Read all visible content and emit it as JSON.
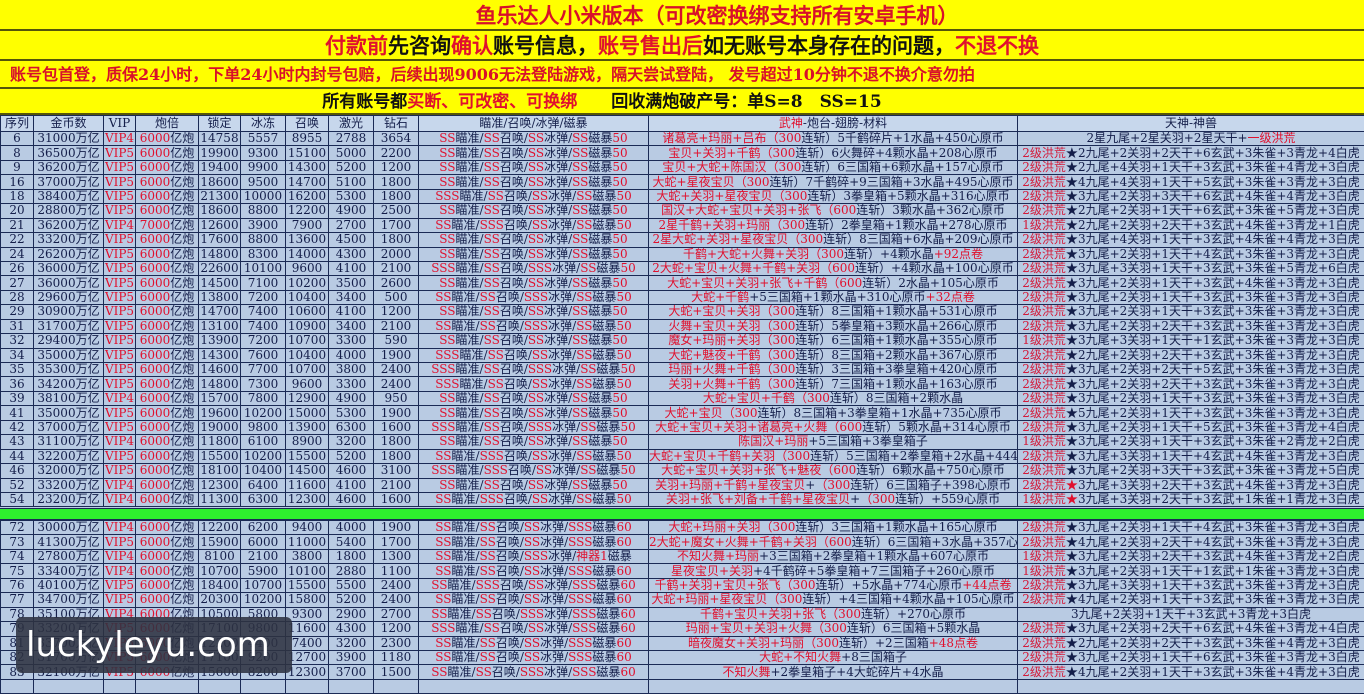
{
  "banners": {
    "title": "鱼乐达人小米版本（可改密换绑支持所有安卓手机）",
    "notice": [
      [
        "付款前",
        "r"
      ],
      [
        "先咨询",
        "b"
      ],
      [
        "确认",
        "r"
      ],
      [
        "账号信息，",
        "b"
      ],
      [
        "账号售出后",
        "r"
      ],
      [
        "如无账号本身存在的问题，",
        "b"
      ],
      [
        "不退不换",
        "r"
      ]
    ],
    "warranty": "账号包首登，质保24小时，下单24小时内封号包赔，后续出现9006无法登陆游戏，隔天尝试登陆， 发号超过10分钟不退不换介意勿拍",
    "guarantee": [
      [
        "所有账号都",
        "b"
      ],
      [
        "买断、可改密、可换绑",
        "r"
      ],
      [
        "　　回收满炮破产号：单S=8　SS=15",
        "b"
      ]
    ]
  },
  "columns": [
    "序列",
    "金币数",
    "VIP",
    "炮倍",
    "锁定",
    "冰冻",
    "召唤",
    "激光",
    "钻石",
    "瞄准/召唤/冰弹/磁暴",
    "武神-炮台-翅膀-材料",
    "天神-神兽"
  ],
  "column_wushen_red": "武神",
  "cannon_unit": "亿炮",
  "skill_names": [
    "瞄准",
    "召唤",
    "冰弹",
    "磁暴"
  ],
  "colors": {
    "banner": "#ffff00",
    "table": "#b9cbe3",
    "separator": "#2ef02e",
    "accent_red": "#e0102e"
  },
  "watermark": "luckyleyu.com",
  "section1": [
    {
      "id": "6",
      "gold": "31000万亿",
      "vip": "VIP4",
      "cannon": "6000",
      "lock": "14758",
      "freeze": "5557",
      "summon": "8955",
      "laser": "2788",
      "diamond": "3654",
      "grades": [
        "SS",
        "SS",
        "SS",
        "SS"
      ],
      "lv": "50",
      "wr": "诸葛亮+玛丽+吕布",
      "wt": "（300连斩）5千鹤碎片+1水晶+450心原币",
      "tl": "",
      "ts": "",
      "tb": "2星九尾+2星关羽+2星天干+",
      "tx": "一级洪荒"
    },
    {
      "id": "8",
      "gold": "36500万亿",
      "vip": "VIP5",
      "cannon": "6000",
      "lock": "19900",
      "freeze": "9300",
      "summon": "15100",
      "laser": "5000",
      "diamond": "2200",
      "grades": [
        "SS",
        "SS",
        "SS",
        "SS"
      ],
      "lv": "50",
      "wr": "宝贝+关羽+千鹤",
      "wt": "（300连斩）6火舞碎+4颗水晶+208心原币",
      "tl": "2级洪荒",
      "ts": "black",
      "tb": "2九尾+2关羽+2天干+6玄武+3朱雀+3青龙+4白虎"
    },
    {
      "id": "9",
      "gold": "36200万亿",
      "vip": "VIP5",
      "cannon": "6000",
      "lock": "19400",
      "freeze": "9900",
      "summon": "14300",
      "laser": "5200",
      "diamond": "1200",
      "grades": [
        "SS",
        "SS",
        "SS",
        "SS"
      ],
      "lv": "50",
      "wr": "宝贝+大蛇+陈国汉",
      "wt": "（300连斩）6三国箱+6颗水晶+157心原币",
      "tl": "2级洪荒",
      "ts": "black",
      "tb": "2九尾+4关羽+1天干+3玄武+3朱雀+4青龙+3白虎"
    },
    {
      "id": "16",
      "gold": "37000万亿",
      "vip": "VIP5",
      "cannon": "6000",
      "lock": "18600",
      "freeze": "9500",
      "summon": "14700",
      "laser": "5100",
      "diamond": "1800",
      "grades": [
        "SS",
        "SS",
        "SS",
        "SS"
      ],
      "lv": "50",
      "wr": "大蛇+星夜宝贝",
      "wt": "（300连斩）7千鹤碎+9三国箱+3水晶+495心原币",
      "tl": "2级洪荒",
      "ts": "black",
      "tb": "4九尾+4关羽+1天干+5玄武+3朱雀+3青龙+3白虎"
    },
    {
      "id": "18",
      "gold": "38400万亿",
      "vip": "VIP5",
      "cannon": "6000",
      "lock": "21300",
      "freeze": "10000",
      "summon": "16200",
      "laser": "5300",
      "diamond": "1800",
      "grades": [
        "SSS",
        "SS",
        "SS",
        "SS"
      ],
      "lv": "50",
      "wr": "大蛇+关羽+星夜宝贝",
      "wt": "（300连斩）3拳皇箱+5颗水晶+316心原币",
      "tl": "2级洪荒",
      "ts": "black",
      "tb": "3九尾+2关羽+3天干+6玄武+4朱雀+4青龙+3白虎"
    },
    {
      "id": "20",
      "gold": "28800万亿",
      "vip": "VIP5",
      "cannon": "6000",
      "lock": "18600",
      "freeze": "8800",
      "summon": "12200",
      "laser": "4900",
      "diamond": "2500",
      "grades": [
        "SS",
        "SS",
        "SS",
        "SS"
      ],
      "lv": "50",
      "wr": "国汉+大蛇+宝贝+关羽+张飞",
      "wt": "（600连斩）3颗水晶+362心原币",
      "tl": "2级洪荒",
      "ts": "black",
      "tb": "2九尾+2关羽+1天干+6玄武+3朱雀+5青龙+3白虎"
    },
    {
      "id": "21",
      "gold": "36200万亿",
      "vip": "VIP4",
      "cannon": "7000",
      "lock": "12600",
      "freeze": "3900",
      "summon": "7900",
      "laser": "2700",
      "diamond": "1700",
      "grades": [
        "SS",
        "SSS",
        "SS",
        "SS"
      ],
      "lv": "50",
      "wr": "2星千鹤+关羽+玛丽",
      "wt": "（300连斩）2拳皇箱+1颗水晶+278心原币",
      "tl": "1级洪荒",
      "ts": "black",
      "tb": "2九尾+2关羽+2天干+3玄武+4朱雀+3青龙+1白虎"
    },
    {
      "id": "22",
      "gold": "33200万亿",
      "vip": "VIP5",
      "cannon": "6000",
      "lock": "17600",
      "freeze": "8800",
      "summon": "13600",
      "laser": "4500",
      "diamond": "1800",
      "grades": [
        "SS",
        "SS",
        "SS",
        "SS"
      ],
      "lv": "50",
      "wr": "2星大蛇+关羽+星夜宝贝",
      "wt": "（300连斩）8三国箱+6水晶+209心原币",
      "tl": "2级洪荒",
      "ts": "black",
      "tb": "3九尾+4关羽+1天干+3玄武+4朱雀+4青龙+3白虎"
    },
    {
      "id": "24",
      "gold": "26200万亿",
      "vip": "VIP5",
      "cannon": "6000",
      "lock": "14800",
      "freeze": "8300",
      "summon": "14000",
      "laser": "4300",
      "diamond": "2000",
      "grades": [
        "SS",
        "SS",
        "SS",
        "SS"
      ],
      "lv": "50",
      "wr": "千鹤+大蛇+火舞+关羽",
      "wt": "（300连斩）+4颗水晶+92点卷",
      "tl": "2级洪荒",
      "ts": "black",
      "tb": "3九尾+2关羽+1天干+4玄武+3朱雀+3青龙+3白虎"
    },
    {
      "id": "26",
      "gold": "36000万亿",
      "vip": "VIP5",
      "cannon": "6000",
      "lock": "22600",
      "freeze": "10100",
      "summon": "9600",
      "laser": "4100",
      "diamond": "2100",
      "grades": [
        "SSS",
        "SS",
        "SSS",
        "SS"
      ],
      "lv": "50",
      "wr": "2大蛇+宝贝+火舞+千鹤+关羽",
      "wt": "（600连斩）+4颗水晶+100心原币",
      "tl": "2级洪荒",
      "ts": "black",
      "tb": "3九尾+3关羽+1天干+3玄武+3朱雀+5青龙+6白虎"
    },
    {
      "id": "27",
      "gold": "36000万亿",
      "vip": "VIP5",
      "cannon": "6000",
      "lock": "14500",
      "freeze": "7100",
      "summon": "10200",
      "laser": "3500",
      "diamond": "2600",
      "grades": [
        "SS",
        "SS",
        "SS",
        "SS"
      ],
      "lv": "50",
      "wr": "大蛇+宝贝+关羽+张飞+千鹤",
      "wt": "（600连斩）2水晶+105心原币",
      "tl": "2级洪荒",
      "ts": "black",
      "tb": "3九尾+2关羽+1天干+3玄武+4朱雀+3青龙+3白虎"
    },
    {
      "id": "28",
      "gold": "29600万亿",
      "vip": "VIP5",
      "cannon": "6000",
      "lock": "13800",
      "freeze": "7200",
      "summon": "10400",
      "laser": "3400",
      "diamond": "500",
      "grades": [
        "SS",
        "SS",
        "SSS",
        "SS"
      ],
      "lv": "50",
      "wr": "大蛇+千鹤",
      "wt": "+5三国箱+1颗水晶+310心原币+32点卷",
      "tl": "2级洪荒",
      "ts": "black",
      "tb": "3九尾+2关羽+1天干+3玄武+3朱雀+3青龙+3白虎"
    },
    {
      "id": "29",
      "gold": "30900万亿",
      "vip": "VIP5",
      "cannon": "6000",
      "lock": "14700",
      "freeze": "7400",
      "summon": "10600",
      "laser": "4100",
      "diamond": "1200",
      "grades": [
        "SS",
        "SS",
        "SS",
        "SS"
      ],
      "lv": "50",
      "wr": "大蛇+宝贝+关羽",
      "wt": "（300连斩）8三国箱+1颗水晶+531心原币",
      "tl": "2级洪荒",
      "ts": "black",
      "tb": "3九尾+2关羽+1天干+3玄武+3朱雀+3青龙+3白虎"
    },
    {
      "id": "31",
      "gold": "31700万亿",
      "vip": "VIP5",
      "cannon": "6000",
      "lock": "13100",
      "freeze": "7400",
      "summon": "10900",
      "laser": "3400",
      "diamond": "2100",
      "grades": [
        "SS",
        "SS",
        "SSS",
        "SS"
      ],
      "lv": "50",
      "wr": "火舞+宝贝+关羽",
      "wt": "（300连斩）5拳皇箱+3颗水晶+266心原币",
      "tl": "2级洪荒",
      "ts": "black",
      "tb": "3九尾+2关羽+2天干+3玄武+3朱雀+3青龙+3白虎"
    },
    {
      "id": "32",
      "gold": "29400万亿",
      "vip": "VIP5",
      "cannon": "6000",
      "lock": "13900",
      "freeze": "7200",
      "summon": "10700",
      "laser": "3300",
      "diamond": "590",
      "grades": [
        "SS",
        "SS",
        "SS",
        "SS"
      ],
      "lv": "50",
      "wr": "魔女+玛丽+关羽",
      "wt": "（300连斩）6三国箱+1颗水晶+355心原币",
      "tl": "1级洪荒",
      "ts": "black",
      "tb": "3九尾+3关羽+1天干+1玄武+3朱雀+3青龙+3白虎"
    },
    {
      "id": "34",
      "gold": "35000万亿",
      "vip": "VIP5",
      "cannon": "6000",
      "lock": "14300",
      "freeze": "7600",
      "summon": "10400",
      "laser": "4000",
      "diamond": "1900",
      "grades": [
        "SSS",
        "SS",
        "SS",
        "SS"
      ],
      "lv": "50",
      "wr": "大蛇+魅夜+千鹤",
      "wt": "（300连斩）8三国箱+2颗水晶+367心原币",
      "tl": "2级洪荒",
      "ts": "black",
      "tb": "2九尾+2关羽+2天干+3玄武+3朱雀+3青龙+3白虎"
    },
    {
      "id": "35",
      "gold": "35300万亿",
      "vip": "VIP5",
      "cannon": "6000",
      "lock": "14600",
      "freeze": "7700",
      "summon": "10700",
      "laser": "3800",
      "diamond": "2400",
      "grades": [
        "SSS",
        "SS",
        "SSS",
        "SS"
      ],
      "lv": "50",
      "wr": "玛丽+火舞+千鹤",
      "wt": "（300连斩）3三国箱+3拳皇箱+420心原币",
      "tl": "2级洪荒",
      "ts": "black",
      "tb": "3九尾+2关羽+2天干+5玄武+3朱雀+3青龙+3白虎"
    },
    {
      "id": "36",
      "gold": "34200万亿",
      "vip": "VIP5",
      "cannon": "6000",
      "lock": "14800",
      "freeze": "7300",
      "summon": "9600",
      "laser": "3300",
      "diamond": "2400",
      "grades": [
        "SSS",
        "SS",
        "SS",
        "SS"
      ],
      "lv": "50",
      "wr": "关羽+火舞+千鹤",
      "wt": "（300连斩）7三国箱+1颗水晶+163心原币",
      "tl": "2级洪荒",
      "ts": "black",
      "tb": "3九尾+2关羽+2天干+3玄武+3朱雀+3青龙+3白虎"
    },
    {
      "id": "39",
      "gold": "38100万亿",
      "vip": "VIP4",
      "cannon": "6000",
      "lock": "15700",
      "freeze": "7800",
      "summon": "12900",
      "laser": "4900",
      "diamond": "950",
      "grades": [
        "SS",
        "SS",
        "SS",
        "SS"
      ],
      "lv": "50",
      "wr": "大蛇+宝贝+千鹤",
      "wt": "（300连斩）8三国箱+2颗水晶",
      "tl": "2级洪荒",
      "ts": "black",
      "tb": "3九尾+2关羽+1天干+3玄武+3朱雀+3青龙+3白虎"
    },
    {
      "id": "41",
      "gold": "35000万亿",
      "vip": "VIP5",
      "cannon": "6000",
      "lock": "19600",
      "freeze": "10200",
      "summon": "15000",
      "laser": "5300",
      "diamond": "1900",
      "grades": [
        "SS",
        "SS",
        "SS",
        "SS"
      ],
      "lv": "50",
      "wr": "大蛇+宝贝",
      "wt": "（300连斩）8三国箱+3拳皇箱+1水晶+735心原币",
      "tl": "2级洪荒",
      "ts": "black",
      "tb": "5九尾+2关羽+1天干+3玄武+3朱雀+3青龙+3白虎"
    },
    {
      "id": "42",
      "gold": "37000万亿",
      "vip": "VIP5",
      "cannon": "6000",
      "lock": "19000",
      "freeze": "9800",
      "summon": "13900",
      "laser": "6300",
      "diamond": "1600",
      "grades": [
        "SSS",
        "SS",
        "SSS",
        "SS"
      ],
      "lv": "50",
      "wr": "大蛇+宝贝+关羽+诸葛亮+火舞",
      "wt": "（600连斩）5颗水晶+314心原币",
      "tl": "2级洪荒",
      "ts": "black",
      "tb": "3九尾+2关羽+1天干+5玄武+3朱雀+3青龙+4白虎"
    },
    {
      "id": "43",
      "gold": "31100万亿",
      "vip": "VIP4",
      "cannon": "6000",
      "lock": "11800",
      "freeze": "6100",
      "summon": "8900",
      "laser": "3200",
      "diamond": "1800",
      "grades": [
        "SS",
        "SS",
        "SS",
        "SS"
      ],
      "lv": "50",
      "wr": "陈国汉+玛丽",
      "wt": "+5三国箱+3拳皇箱子",
      "tl": "1级洪荒",
      "ts": "black",
      "tb": "3九尾+2关羽+1天干+3玄武+3朱雀+2青龙+2白虎"
    },
    {
      "id": "44",
      "gold": "32200万亿",
      "vip": "VIP5",
      "cannon": "6000",
      "lock": "15500",
      "freeze": "10200",
      "summon": "15500",
      "laser": "5200",
      "diamond": "1800",
      "grades": [
        "SS",
        "SSS",
        "SS",
        "SS"
      ],
      "lv": "50",
      "wr": "大蛇+宝贝+千鹤+关羽",
      "wt": "（300连斩）5三国箱+2拳皇箱+2水晶+444",
      "tl": "2级洪荒",
      "ts": "black",
      "tb": "3九尾+3关羽+1天干+4玄武+4朱雀+3青龙+3白虎"
    },
    {
      "id": "46",
      "gold": "32000万亿",
      "vip": "VIP5",
      "cannon": "6000",
      "lock": "18100",
      "freeze": "10400",
      "summon": "14500",
      "laser": "4600",
      "diamond": "3100",
      "grades": [
        "SSS",
        "SSS",
        "SS",
        "SS"
      ],
      "lv": "50",
      "wr": "大蛇+宝贝+关羽+张飞+魅夜",
      "wt": "（600连斩）6颗水晶+750心原币",
      "tl": "2级洪荒",
      "ts": "black",
      "tb": "3九尾+2关羽+3天干+3玄武+3朱雀+3青龙+5白虎"
    },
    {
      "id": "52",
      "gold": "33200万亿",
      "vip": "VIP4",
      "cannon": "6000",
      "lock": "12300",
      "freeze": "6400",
      "summon": "11600",
      "laser": "4100",
      "diamond": "2100",
      "grades": [
        "SS",
        "SS",
        "SS",
        "SS"
      ],
      "lv": "50",
      "wr": "关羽+玛丽+千鹤+星夜宝贝",
      "wt": "+（300连斩）6三国箱子+398心原币",
      "tl": "2级洪荒",
      "ts": "red",
      "tb": "3九尾+3关羽+2天干+3玄武+4朱雀+3青龙+3白虎"
    },
    {
      "id": "54",
      "gold": "23200万亿",
      "vip": "VIP4",
      "cannon": "6000",
      "lock": "11300",
      "freeze": "6300",
      "summon": "12300",
      "laser": "4600",
      "diamond": "1600",
      "grades": [
        "SS",
        "SSS",
        "SS",
        "SS"
      ],
      "lv": "50",
      "wr": "关羽+张飞+刘备+千鹤+星夜宝贝",
      "wt": "+（300连斩）+559心原币",
      "tl": "1级洪荒",
      "ts": "red",
      "tb": "3九尾+3关羽+2天干+3玄武+1朱雀+1青龙+3白虎"
    }
  ],
  "section2": [
    {
      "id": "72",
      "gold": "30000万亿",
      "vip": "VIP4",
      "cannon": "6000",
      "lock": "12200",
      "freeze": "6200",
      "summon": "9400",
      "laser": "4000",
      "diamond": "1900",
      "grades": [
        "SS",
        "SS",
        "SS",
        "SSS"
      ],
      "lv": "60",
      "wr": "大蛇+玛丽+关羽",
      "wt": "（300连斩）3三国箱+1颗水晶+165心原币",
      "tl": "2级洪荒",
      "ts": "black",
      "tb": "3九尾+2关羽+1天干+4玄武+3朱雀+3青龙+3白虎"
    },
    {
      "id": "73",
      "gold": "41300万亿",
      "vip": "VIP5",
      "cannon": "6000",
      "lock": "15900",
      "freeze": "6000",
      "summon": "11000",
      "laser": "5400",
      "diamond": "1700",
      "grades": [
        "SS",
        "SS",
        "SS",
        "SSS"
      ],
      "lv": "60",
      "wr": "2大蛇+魔女+火舞+千鹤+关羽",
      "wt": "（600连斩）6三国箱+3水晶+357心",
      "tl": "2级洪荒",
      "ts": "black",
      "tb": "4九尾+2关羽+2天干+4玄武+3朱雀+3青龙+3白虎"
    },
    {
      "id": "74",
      "gold": "27800万亿",
      "vip": "VIP4",
      "cannon": "6000",
      "lock": "8100",
      "freeze": "2100",
      "summon": "3800",
      "laser": "1800",
      "diamond": "1300",
      "grades": [
        "SS",
        "SS",
        "SSS",
        "神器1"
      ],
      "lv": "",
      "wr": "不知火舞+玛丽",
      "wt": "+3三国箱+2拳皇箱+1颗水晶+607心原币",
      "tl": "1级洪荒",
      "ts": "black",
      "tb": "3九尾+2关羽+2天干+3玄武+4朱雀+3青龙+2白虎"
    },
    {
      "id": "75",
      "gold": "33400万亿",
      "vip": "VIP4",
      "cannon": "6000",
      "lock": "10700",
      "freeze": "5900",
      "summon": "10100",
      "laser": "2880",
      "diamond": "1100",
      "grades": [
        "SS",
        "SS",
        "SS",
        "SSS"
      ],
      "lv": "60",
      "wr": "星夜宝贝+关羽",
      "wt": "+4千鹤碎+5拳皇箱+7三国箱子+260心原币",
      "tl": "1级洪荒",
      "ts": "black",
      "tb": "3九尾+2关羽+1天干+1玄武+1朱雀+3青龙+3白虎"
    },
    {
      "id": "76",
      "gold": "40100万亿",
      "vip": "VIP5",
      "cannon": "6000",
      "lock": "18400",
      "freeze": "10700",
      "summon": "15500",
      "laser": "5500",
      "diamond": "2400",
      "grades": [
        "SS",
        "SSS",
        "SS",
        "SSS"
      ],
      "lv": "60",
      "wr": "千鹤+关羽+宝贝+张飞",
      "wt": "（300连斩）+5水晶+774心原币+44点卷",
      "tl": "2级洪荒",
      "ts": "black",
      "tb": "3九尾+3关羽+1天干+3玄武+3朱雀+3青龙+3白虎"
    },
    {
      "id": "77",
      "gold": "34700万亿",
      "vip": "VIP5",
      "cannon": "6000",
      "lock": "20300",
      "freeze": "10200",
      "summon": "15800",
      "laser": "5200",
      "diamond": "2400",
      "grades": [
        "SS",
        "SS",
        "SS",
        "SSS"
      ],
      "lv": "60",
      "wr": "大蛇+玛丽+星夜宝贝",
      "wt": "（300连斩）+4三国箱+4颗水晶+105心原币",
      "tl": "2级洪荒",
      "ts": "black",
      "tb": "4九尾+2关羽+1天干+3玄武+3朱雀+3青龙+3白虎"
    },
    {
      "id": "78",
      "gold": "35100万亿",
      "vip": "VIP4",
      "cannon": "6000",
      "lock": "10500",
      "freeze": "5800",
      "summon": "9300",
      "laser": "2900",
      "diamond": "2700",
      "grades": [
        "SS",
        "SS",
        "SSS",
        "SSS"
      ],
      "lv": "60",
      "wr": "千鹤+宝贝+关羽+张飞",
      "wt": "（300连斩）+270心原币",
      "tl": "",
      "ts": "",
      "tb": "3九尾+2关羽+1天干+3玄武+3青龙+3白虎"
    },
    {
      "id": "79",
      "gold": "33200万亿",
      "vip": "VIP5",
      "cannon": "6000",
      "lock": "17100",
      "freeze": "9800",
      "summon": "11600",
      "laser": "4300",
      "diamond": "1200",
      "grades": [
        "SSS",
        "SS",
        "SS",
        "SSS"
      ],
      "lv": "60",
      "wr": "玛丽+宝贝+关羽+火舞",
      "wt": "（300连斩）6三国箱+5颗水晶",
      "tl": "2级洪荒",
      "ts": "black",
      "tb": "3九尾+2关羽+2天干+6玄武+4朱雀+3青龙+4白虎"
    },
    {
      "id": "81",
      "gold": "33700万亿",
      "vip": "VIP5",
      "cannon": "6000",
      "lock": "12200",
      "freeze": "4400",
      "summon": "7400",
      "laser": "3200",
      "diamond": "2300",
      "grades": [
        "SS",
        "SS",
        "SS",
        "SSS"
      ],
      "lv": "60",
      "wr": "暗夜魔女+关羽+玛丽",
      "wt": "（300连斩）+2三国箱+48点卷",
      "tl": "2级洪荒",
      "ts": "black",
      "tb": "2九尾+2关羽+2天干+3玄武+3朱雀+4青龙+3白虎"
    },
    {
      "id": "82",
      "gold": "31700万亿",
      "vip": "VIP5",
      "cannon": "6000",
      "lock": "17100",
      "freeze": "9200",
      "summon": "12700",
      "laser": "3900",
      "diamond": "1180",
      "grades": [
        "SS",
        "SS",
        "SS",
        "SSS"
      ],
      "lv": "60",
      "wr": "大蛇+不知火舞",
      "wt": "+8三国箱子",
      "tl": "2级洪荒",
      "ts": "black",
      "tb": "3九尾+2关羽+1天干+6玄武+3朱雀+3青龙+3白虎"
    },
    {
      "id": "83",
      "gold": "32100万亿",
      "vip": "VIP5",
      "cannon": "6000",
      "lock": "15600",
      "freeze": "8200",
      "summon": "12300",
      "laser": "3700",
      "diamond": "1500",
      "grades": [
        "SS",
        "SS",
        "SSS",
        "SSS"
      ],
      "lv": "60",
      "wr": "不知火舞",
      "wt": "+2拳皇箱子+4大蛇碎片+4水晶",
      "tl": "2级洪荒",
      "ts": "black",
      "tb": "4九尾+2关羽+1天干+3玄武+3朱雀+4青龙+3白虎"
    }
  ]
}
